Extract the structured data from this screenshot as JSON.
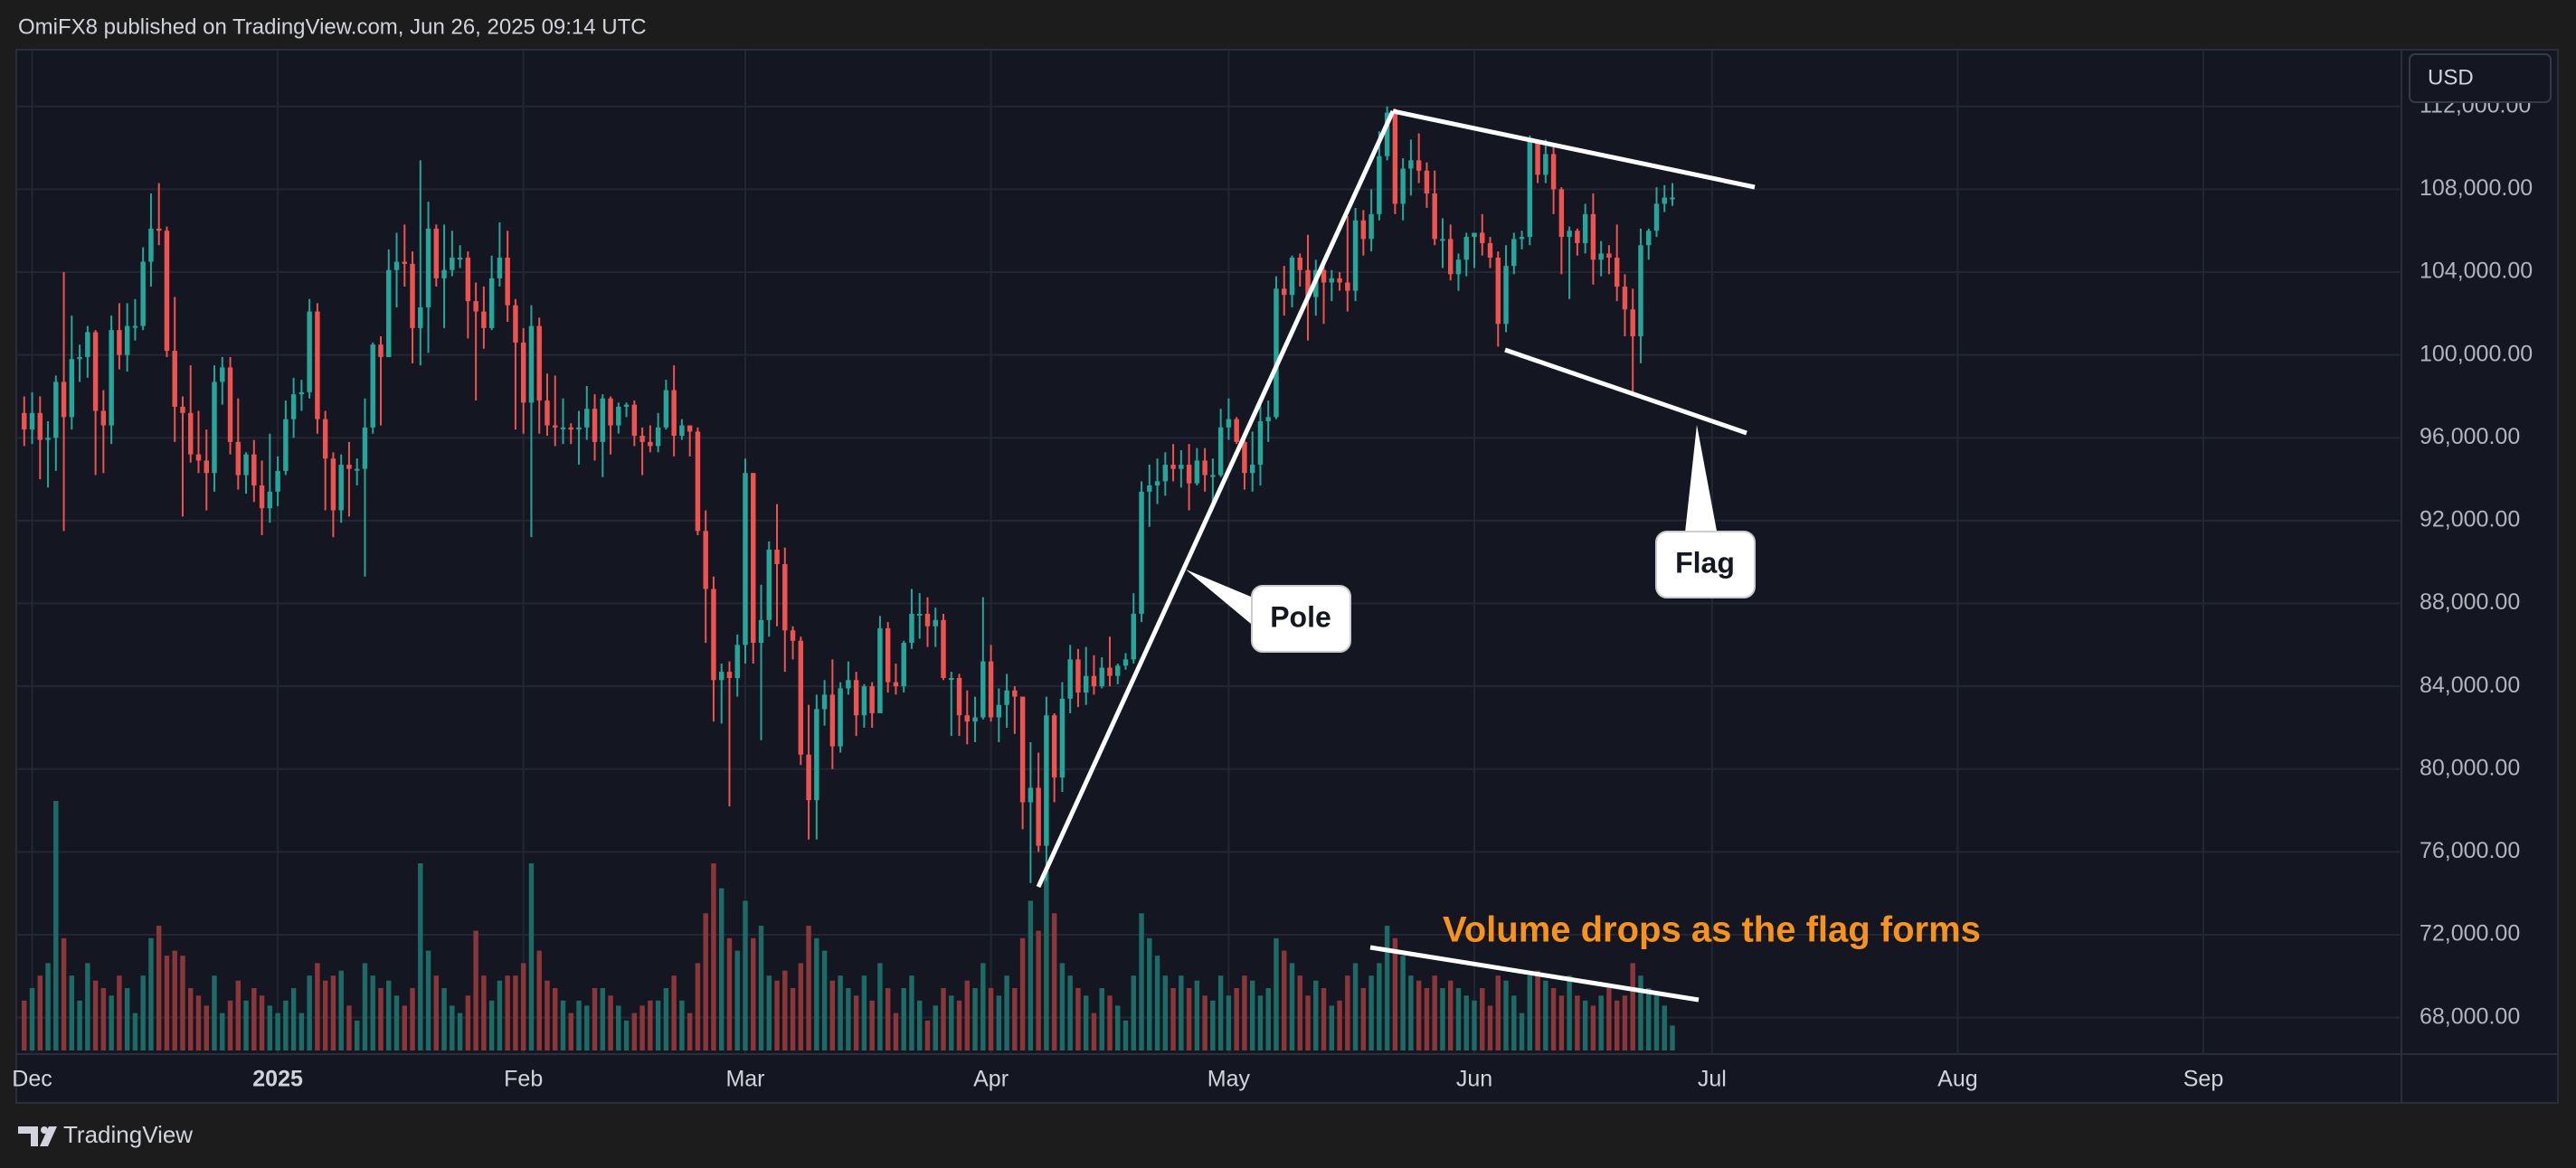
{
  "header": {
    "text": "OmiFX8 published on TradingView.com, Jun 26, 2025 09:14 UTC"
  },
  "footer": {
    "brand": "TradingView"
  },
  "chart_data": {
    "type": "candlestick",
    "currency": "USD",
    "annotations": [
      "Pole",
      "Flag",
      "Volume drops as the flag forms"
    ],
    "up_color": "#26a69a",
    "down_color": "#ef5350",
    "volume_up_color": "#1d6b66",
    "volume_down_color": "#8b3739",
    "grid": true,
    "xlim": [
      -2,
      299
    ],
    "ylim": [
      66240,
      114740
    ],
    "xticks": [
      {
        "value": 0,
        "label": "Dec"
      },
      {
        "value": 31,
        "label": "2025"
      },
      {
        "value": 62,
        "label": "Feb"
      },
      {
        "value": 90,
        "label": "Mar"
      },
      {
        "value": 121,
        "label": "Apr"
      },
      {
        "value": 151,
        "label": "May"
      },
      {
        "value": 182,
        "label": "Jun"
      },
      {
        "value": 212,
        "label": "Jul"
      },
      {
        "value": 243,
        "label": "Aug"
      },
      {
        "value": 274,
        "label": "Sep"
      }
    ],
    "yticks": [
      {
        "value": 68000,
        "label": "68,000.00"
      },
      {
        "value": 72000,
        "label": "72,000.00"
      },
      {
        "value": 76000,
        "label": "76,000.00"
      },
      {
        "value": 80000,
        "label": "80,000.00"
      },
      {
        "value": 84000,
        "label": "84,000.00"
      },
      {
        "value": 88000,
        "label": "88,000.00"
      },
      {
        "value": 92000,
        "label": "92,000.00"
      },
      {
        "value": 96000,
        "label": "96,000.00"
      },
      {
        "value": 100000,
        "label": "100,000.00"
      },
      {
        "value": 104000,
        "label": "104,000.00"
      },
      {
        "value": 108000,
        "label": "108,000.00"
      },
      {
        "value": 112000,
        "label": "112,000.00"
      }
    ],
    "x": [
      -1,
      0,
      1,
      2,
      3,
      4,
      5,
      6,
      7,
      8,
      9,
      10,
      11,
      12,
      13,
      14,
      15,
      16,
      17,
      18,
      19,
      20,
      21,
      22,
      23,
      24,
      25,
      26,
      27,
      28,
      29,
      30,
      31,
      32,
      33,
      34,
      35,
      36,
      37,
      38,
      39,
      40,
      41,
      42,
      43,
      44,
      45,
      46,
      47,
      48,
      49,
      50,
      51,
      52,
      53,
      54,
      55,
      56,
      57,
      58,
      59,
      60,
      61,
      62,
      63,
      64,
      65,
      66,
      67,
      68,
      69,
      70,
      71,
      72,
      73,
      74,
      75,
      76,
      77,
      78,
      79,
      80,
      81,
      82,
      83,
      84,
      85,
      86,
      87,
      88,
      89,
      90,
      91,
      92,
      93,
      94,
      95,
      96,
      97,
      98,
      99,
      100,
      101,
      102,
      103,
      104,
      105,
      106,
      107,
      108,
      109,
      110,
      111,
      112,
      113,
      114,
      115,
      116,
      117,
      118,
      119,
      120,
      121,
      122,
      123,
      124,
      125,
      126,
      127,
      128,
      129,
      130,
      131,
      132,
      133,
      134,
      135,
      136,
      137,
      138,
      139,
      140,
      141,
      142,
      143,
      144,
      145,
      146,
      147,
      148,
      149,
      150,
      151,
      152,
      153,
      154,
      155,
      156,
      157,
      158,
      159,
      160,
      161,
      162,
      163,
      164,
      165,
      166,
      167,
      168,
      169,
      170,
      171,
      172,
      173,
      174,
      175,
      176,
      177,
      178,
      179,
      180,
      181,
      182,
      183,
      184,
      185,
      186,
      187,
      188,
      189,
      190,
      191,
      192,
      193,
      194,
      195,
      196,
      197,
      198,
      199,
      200,
      201,
      202,
      203,
      204,
      205,
      206,
      207
    ],
    "open": [
      97200,
      96400,
      97200,
      95900,
      96000,
      98700,
      97000,
      99800,
      99900,
      101100,
      97300,
      96600,
      101200,
      100000,
      101400,
      101400,
      104500,
      106100,
      106000,
      100200,
      97500,
      97200,
      95200,
      94900,
      94300,
      98700,
      99400,
      95800,
      94200,
      95200,
      93700,
      92600,
      93400,
      94400,
      96900,
      98100,
      98200,
      102100,
      96900,
      95000,
      92500,
      94700,
      94500,
      94500,
      96500,
      100500,
      99900,
      104100,
      104500,
      104400,
      101300,
      102300,
      106100,
      103700,
      104100,
      104700,
      104700,
      102600,
      102100,
      101300,
      103700,
      104700,
      102400,
      100600,
      97700,
      101400,
      97800,
      96600,
      96500,
      96500,
      96400,
      96500,
      97400,
      95800,
      97900,
      96600,
      97500,
      97600,
      96100,
      95800,
      95600,
      96500,
      98300,
      96100,
      96600,
      96300,
      91500,
      88700,
      84300,
      84700,
      84400,
      86000,
      94300,
      86100,
      87200,
      90600,
      89900,
      86700,
      86200,
      80700,
      78500,
      82900,
      83600,
      81100,
      83900,
      84300,
      82600,
      84000,
      82700,
      86800,
      84200,
      84000,
      86100,
      87500,
      87500,
      86900,
      87200,
      84400,
      84400,
      82600,
      82300,
      82500,
      85200,
      82500,
      83100,
      83800,
      83500,
      78400,
      79100,
      76300,
      82600,
      79600,
      83400,
      85300,
      83700,
      84500,
      84000,
      84900,
      84500,
      85000,
      85300,
      87500,
      93400,
      93700,
      93900,
      94700,
      94500,
      94700,
      93800,
      94900,
      94200,
      94200,
      96500,
      96900,
      95800,
      94300,
      94700,
      96800,
      97000,
      103200,
      102900,
      104700,
      104100,
      102800,
      104100,
      103500,
      103700,
      103500,
      103100,
      106500,
      105600,
      106800,
      109600,
      111700,
      107300,
      109000,
      109400,
      108900,
      107800,
      105600,
      105600,
      103900,
      104600,
      105700,
      105900,
      105400,
      104700,
      101500,
      104300,
      105600,
      105700,
      110300,
      108700,
      109700,
      108000,
      105700,
      106000,
      105400,
      106800,
      104600,
      104900,
      104700,
      103300,
      102200,
      100900,
      105300,
      106000,
      107300,
      107600
    ],
    "high": [
      98000,
      98200,
      98000,
      96800,
      99000,
      104000,
      101900,
      100500,
      101400,
      101200,
      98300,
      101900,
      102500,
      102500,
      102700,
      105200,
      107800,
      108300,
      106200,
      102800,
      98000,
      99500,
      97300,
      96400,
      99500,
      99900,
      99900,
      97900,
      95300,
      95900,
      94900,
      96200,
      95100,
      97800,
      98900,
      98800,
      102700,
      102500,
      97300,
      95300,
      95200,
      95800,
      95000,
      97900,
      100600,
      100900,
      105100,
      105900,
      106300,
      105000,
      109400,
      107400,
      106300,
      106300,
      106000,
      105300,
      105000,
      103500,
      103300,
      104800,
      106400,
      106000,
      102700,
      101300,
      102400,
      101800,
      99100,
      99000,
      97900,
      96700,
      97300,
      98500,
      98100,
      98100,
      98000,
      97700,
      97700,
      97800,
      96500,
      96600,
      97200,
      98800,
      99500,
      96900,
      96600,
      96500,
      92500,
      89300,
      85100,
      85200,
      86500,
      95000,
      94300,
      88900,
      91000,
      92800,
      90700,
      86900,
      86400,
      83100,
      83600,
      84300,
      85300,
      84200,
      85200,
      84700,
      84100,
      84200,
      87400,
      87100,
      85100,
      86200,
      88700,
      88500,
      88300,
      87800,
      87500,
      84700,
      84600,
      83800,
      83500,
      88300,
      86000,
      83900,
      84600,
      84000,
      83500,
      81300,
      80800,
      83500,
      82700,
      84200,
      86000,
      85800,
      85900,
      85500,
      85400,
      86400,
      85100,
      85600,
      88500,
      93900,
      94700,
      95000,
      95300,
      95700,
      95400,
      95700,
      95500,
      95500,
      95000,
      97400,
      97900,
      97000,
      96000,
      96300,
      97600,
      97800,
      103800,
      104300,
      104800,
      104900,
      105800,
      104600,
      104300,
      104100,
      104000,
      106700,
      107100,
      107000,
      108000,
      110800,
      112000,
      111900,
      109500,
      110400,
      110700,
      109300,
      108900,
      106600,
      106300,
      104900,
      105900,
      105900,
      106800,
      105700,
      105000,
      105300,
      105900,
      106000,
      110600,
      110400,
      110400,
      110200,
      108100,
      106200,
      106100,
      107300,
      107800,
      105500,
      105300,
      106300,
      103900,
      103200,
      106100,
      106100,
      108100,
      108200,
      108300
    ],
    "low": [
      95600,
      95700,
      94000,
      93600,
      94400,
      91500,
      96400,
      98700,
      98900,
      94200,
      94300,
      95700,
      99300,
      99200,
      100700,
      101200,
      103300,
      105300,
      99900,
      95800,
      92200,
      94800,
      94300,
      92500,
      93400,
      97600,
      95200,
      93500,
      93300,
      92900,
      91300,
      91900,
      92700,
      94200,
      96000,
      97300,
      97900,
      96200,
      92500,
      91200,
      91900,
      92200,
      93700,
      89300,
      96200,
      96600,
      99900,
      102300,
      103300,
      99600,
      99500,
      100100,
      103300,
      101300,
      103800,
      104200,
      100800,
      97800,
      100300,
      101200,
      103300,
      101600,
      96400,
      96200,
      91200,
      96200,
      96100,
      95600,
      95700,
      95700,
      94700,
      95900,
      94900,
      94100,
      95200,
      96200,
      97000,
      95600,
      94200,
      95300,
      95300,
      96400,
      95100,
      95900,
      95100,
      91300,
      86100,
      82300,
      82200,
      78200,
      83500,
      85100,
      85100,
      81400,
      86400,
      86900,
      84700,
      85300,
      80200,
      76600,
      76600,
      82100,
      80000,
      80800,
      83600,
      81600,
      82000,
      82000,
      82700,
      83700,
      83600,
      83700,
      85800,
      86300,
      85900,
      85900,
      84300,
      81600,
      81600,
      81200,
      81300,
      82400,
      82300,
      81300,
      82000,
      81700,
      77100,
      74500,
      76000,
      74600,
      78400,
      78900,
      82700,
      83000,
      83100,
      83600,
      83900,
      84000,
      84100,
      84800,
      85100,
      87100,
      91700,
      92800,
      93200,
      93900,
      93600,
      92500,
      93700,
      93400,
      92900,
      94100,
      95900,
      95700,
      93500,
      93400,
      93700,
      95800,
      96900,
      101900,
      102300,
      103300,
      100700,
      101900,
      101500,
      102600,
      103100,
      102100,
      102600,
      104800,
      105000,
      106500,
      109400,
      106800,
      106500,
      107700,
      108300,
      107100,
      105300,
      104200,
      103600,
      103100,
      103800,
      104200,
      104800,
      104200,
      100400,
      101100,
      103900,
      105100,
      105300,
      108300,
      108300,
      106800,
      103900,
      102700,
      104800,
      104900,
      103400,
      103800,
      103900,
      102600,
      100900,
      98200,
      99600,
      104600,
      105700,
      106900,
      107200
    ],
    "close": [
      96400,
      97200,
      95900,
      96000,
      98700,
      97000,
      99800,
      99900,
      101100,
      97300,
      96600,
      101200,
      100000,
      101400,
      101400,
      104500,
      106100,
      106000,
      100200,
      97500,
      97200,
      95200,
      94900,
      94300,
      98700,
      99400,
      95800,
      94200,
      95200,
      93700,
      92600,
      93400,
      94400,
      96900,
      98100,
      98200,
      102100,
      96900,
      95000,
      92500,
      94700,
      94500,
      94500,
      96500,
      100500,
      99900,
      104100,
      104500,
      104400,
      101300,
      102300,
      106100,
      103700,
      104100,
      104700,
      104700,
      102600,
      102100,
      101300,
      103700,
      104700,
      102400,
      100600,
      97700,
      101400,
      97800,
      96600,
      96500,
      96500,
      96400,
      96500,
      97400,
      95800,
      97900,
      96600,
      97500,
      97600,
      96100,
      95800,
      95600,
      96500,
      98300,
      96100,
      96600,
      96300,
      91500,
      88700,
      84300,
      84700,
      84400,
      86000,
      94300,
      86100,
      87200,
      90600,
      89900,
      86700,
      86200,
      80700,
      78500,
      82900,
      83600,
      81100,
      83900,
      84300,
      82600,
      84000,
      82700,
      86800,
      84200,
      84000,
      86100,
      87500,
      87500,
      86900,
      87200,
      84400,
      84400,
      82600,
      82300,
      82500,
      85200,
      82500,
      83100,
      83800,
      83500,
      78400,
      79100,
      76300,
      82600,
      79600,
      83400,
      85300,
      83700,
      84500,
      84000,
      84900,
      84500,
      85000,
      85300,
      87500,
      93400,
      93700,
      93900,
      94700,
      94500,
      94700,
      93800,
      94900,
      94200,
      94200,
      96500,
      96900,
      95800,
      94300,
      94700,
      96800,
      97000,
      103200,
      102900,
      104700,
      104100,
      102800,
      104100,
      103500,
      103700,
      103500,
      103100,
      106500,
      105600,
      106800,
      109600,
      111700,
      107300,
      109000,
      109400,
      108900,
      107800,
      105600,
      105600,
      103900,
      104600,
      105700,
      105900,
      105400,
      104700,
      101500,
      104300,
      105600,
      105700,
      110300,
      108700,
      109700,
      108000,
      105700,
      106000,
      105400,
      106800,
      104600,
      104900,
      104700,
      103300,
      102200,
      100900,
      105300,
      106000,
      107300,
      107600,
      107600
    ],
    "volume": [
      20,
      25,
      30,
      35,
      100,
      45,
      30,
      20,
      35,
      28,
      25,
      22,
      30,
      25,
      15,
      30,
      45,
      50,
      38,
      40,
      38,
      25,
      22,
      18,
      30,
      15,
      20,
      28,
      20,
      25,
      22,
      18,
      15,
      20,
      25,
      15,
      30,
      35,
      28,
      30,
      32,
      18,
      12,
      35,
      30,
      25,
      28,
      22,
      18,
      25,
      75,
      40,
      30,
      25,
      18,
      15,
      22,
      48,
      30,
      20,
      28,
      30,
      30,
      35,
      75,
      40,
      28,
      25,
      20,
      15,
      20,
      18,
      25,
      25,
      22,
      18,
      12,
      15,
      18,
      20,
      20,
      25,
      30,
      20,
      15,
      35,
      55,
      75,
      65,
      45,
      40,
      60,
      45,
      50,
      30,
      28,
      32,
      25,
      35,
      50,
      45,
      40,
      28,
      30,
      25,
      22,
      30,
      20,
      35,
      25,
      15,
      25,
      30,
      20,
      12,
      18,
      25,
      22,
      20,
      28,
      25,
      35,
      25,
      22,
      30,
      25,
      45,
      60,
      48,
      72,
      55,
      35,
      30,
      25,
      22,
      15,
      25,
      22,
      18,
      12,
      30,
      55,
      45,
      38,
      30,
      25,
      30,
      25,
      28,
      22,
      20,
      30,
      22,
      25,
      30,
      28,
      22,
      25,
      45,
      40,
      35,
      30,
      22,
      28,
      25,
      18,
      20,
      30,
      35,
      25,
      30,
      35,
      50,
      45,
      38,
      30,
      28,
      25,
      30,
      25,
      28,
      25,
      22,
      20,
      25,
      18,
      30,
      28,
      22,
      15,
      30,
      32,
      28,
      25,
      22,
      30,
      22,
      20,
      18,
      22,
      25,
      20,
      22,
      35,
      30,
      25,
      22,
      18,
      10
    ]
  }
}
